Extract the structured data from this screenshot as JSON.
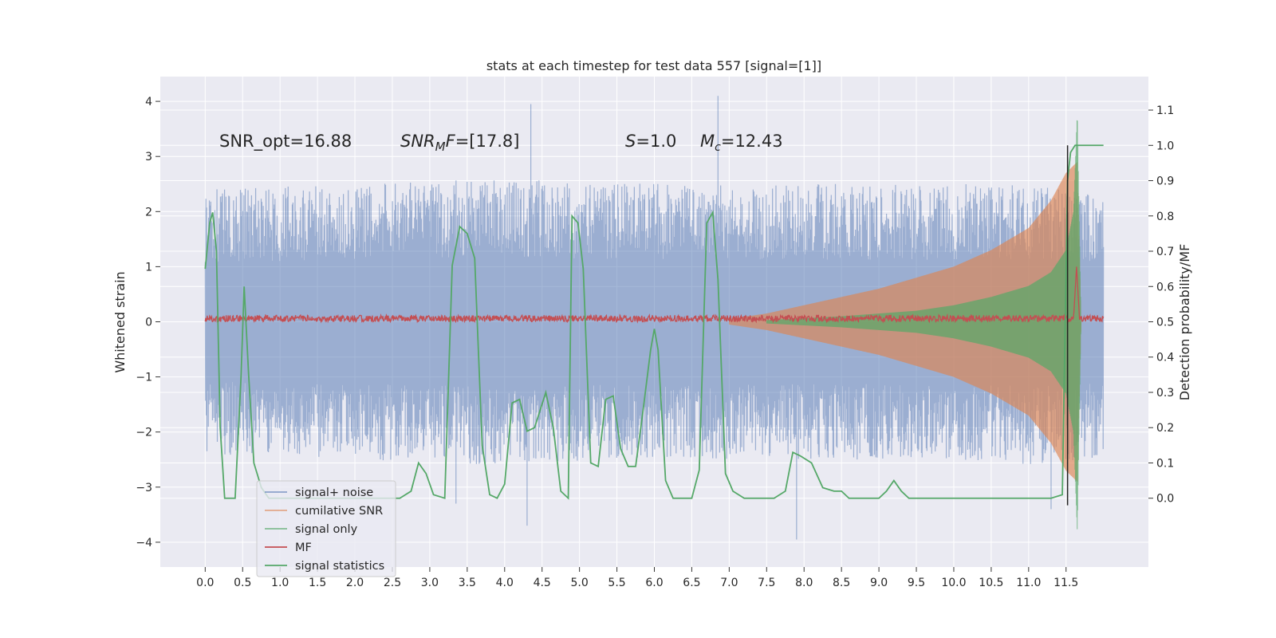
{
  "chart_data": {
    "type": "line",
    "title": "stats at each timestep for test data 557 [signal=[1]]",
    "xlabel": "",
    "ylabel": "Whitened strain",
    "y2label": "Detection probability/MF",
    "xlim": [
      -0.6,
      12.6
    ],
    "ylim": [
      -4.45,
      4.45
    ],
    "y2lim": [
      -0.195,
      1.195
    ],
    "x_ticks": [
      "0.0",
      "0.5",
      "1.0",
      "1.5",
      "2.0",
      "2.5",
      "3.0",
      "3.5",
      "4.0",
      "4.5",
      "5.0",
      "5.5",
      "6.0",
      "6.5",
      "7.0",
      "7.5",
      "8.0",
      "8.5",
      "9.0",
      "9.5",
      "10.0",
      "10.5",
      "11.0",
      "11.5"
    ],
    "y_ticks": [
      "4",
      "3",
      "2",
      "1",
      "0",
      "−1",
      "−2",
      "−3",
      "−4"
    ],
    "y2_ticks": [
      "1.1",
      "1.0",
      "0.9",
      "0.8",
      "0.7",
      "0.6",
      "0.5",
      "0.4",
      "0.3",
      "0.2",
      "0.1",
      "0.0"
    ],
    "grid": true,
    "legend_position": "lower-left",
    "annotations": {
      "snr_opt": "SNR_opt=16.88",
      "snr_mf": "[17.8]",
      "s_value": "1.0",
      "mc_value": "12.43"
    },
    "colors": {
      "signal_noise": "#4c72b0",
      "cumulative_snr": "#dd8452",
      "signal_only": "#55a868",
      "mf": "#c44e52",
      "signal_statistics": "#55a868",
      "background": "#eaeaf2",
      "grid": "#ffffff"
    },
    "series": [
      {
        "name": "signal+ noise",
        "axis": "left",
        "x_range": [
          0.0,
          12.0
        ],
        "envelope_upper": [
          [
            0.0,
            2.4
          ],
          [
            2.0,
            2.5
          ],
          [
            4.0,
            2.6
          ],
          [
            6.0,
            2.5
          ],
          [
            8.0,
            2.5
          ],
          [
            10.0,
            2.5
          ],
          [
            11.0,
            2.5
          ],
          [
            11.8,
            2.4
          ]
        ],
        "envelope_lower": [
          [
            0.0,
            -2.4
          ],
          [
            2.0,
            -2.5
          ],
          [
            4.0,
            -2.6
          ],
          [
            6.0,
            -2.5
          ],
          [
            8.0,
            -2.5
          ],
          [
            10.0,
            -2.5
          ],
          [
            11.0,
            -2.6
          ],
          [
            11.8,
            -2.5
          ]
        ],
        "peaks": [
          [
            4.35,
            3.95
          ],
          [
            6.85,
            4.1
          ],
          [
            4.3,
            -3.7
          ],
          [
            7.9,
            -3.95
          ],
          [
            3.35,
            -3.3
          ],
          [
            11.3,
            -3.4
          ]
        ]
      },
      {
        "name": "cumilative SNR",
        "axis": "left",
        "envelope": [
          [
            7.0,
            0.05
          ],
          [
            7.5,
            0.15
          ],
          [
            8.0,
            0.3
          ],
          [
            8.5,
            0.45
          ],
          [
            9.0,
            0.6
          ],
          [
            9.5,
            0.8
          ],
          [
            10.0,
            1.0
          ],
          [
            10.5,
            1.3
          ],
          [
            11.0,
            1.7
          ],
          [
            11.3,
            2.2
          ],
          [
            11.5,
            2.7
          ],
          [
            11.65,
            2.9
          ],
          [
            11.7,
            0.0
          ]
        ]
      },
      {
        "name": "signal only",
        "axis": "left",
        "envelope": [
          [
            7.5,
            0.03
          ],
          [
            8.5,
            0.1
          ],
          [
            9.5,
            0.2
          ],
          [
            10.0,
            0.3
          ],
          [
            10.5,
            0.45
          ],
          [
            11.0,
            0.65
          ],
          [
            11.3,
            0.9
          ],
          [
            11.5,
            1.3
          ],
          [
            11.6,
            2.0
          ],
          [
            11.65,
            3.8
          ],
          [
            11.7,
            0.0
          ]
        ]
      },
      {
        "name": "MF",
        "axis": "left",
        "baseline": 0.05,
        "band": [
          0.0,
          0.12
        ],
        "spike": [
          [
            11.6,
            0.05
          ],
          [
            11.64,
            1.0
          ],
          [
            11.68,
            0.05
          ]
        ]
      },
      {
        "name": "signal statistics",
        "axis": "right",
        "points": [
          [
            0.0,
            0.65
          ],
          [
            0.06,
            0.78
          ],
          [
            0.1,
            0.81
          ],
          [
            0.15,
            0.7
          ],
          [
            0.2,
            0.2
          ],
          [
            0.26,
            0.0
          ],
          [
            0.4,
            0.0
          ],
          [
            0.48,
            0.35
          ],
          [
            0.52,
            0.6
          ],
          [
            0.58,
            0.35
          ],
          [
            0.65,
            0.1
          ],
          [
            0.75,
            0.03
          ],
          [
            0.85,
            0.0
          ],
          [
            2.4,
            0.0
          ],
          [
            2.6,
            0.0
          ],
          [
            2.75,
            0.02
          ],
          [
            2.85,
            0.1
          ],
          [
            2.95,
            0.07
          ],
          [
            3.05,
            0.01
          ],
          [
            3.2,
            0.0
          ],
          [
            3.3,
            0.66
          ],
          [
            3.4,
            0.77
          ],
          [
            3.5,
            0.75
          ],
          [
            3.6,
            0.68
          ],
          [
            3.7,
            0.15
          ],
          [
            3.8,
            0.01
          ],
          [
            3.9,
            0.0
          ],
          [
            4.0,
            0.04
          ],
          [
            4.1,
            0.27
          ],
          [
            4.2,
            0.28
          ],
          [
            4.3,
            0.19
          ],
          [
            4.4,
            0.2
          ],
          [
            4.55,
            0.3
          ],
          [
            4.65,
            0.2
          ],
          [
            4.75,
            0.02
          ],
          [
            4.85,
            0.0
          ],
          [
            4.9,
            0.8
          ],
          [
            4.98,
            0.78
          ],
          [
            5.05,
            0.65
          ],
          [
            5.15,
            0.1
          ],
          [
            5.25,
            0.09
          ],
          [
            5.35,
            0.28
          ],
          [
            5.45,
            0.29
          ],
          [
            5.55,
            0.14
          ],
          [
            5.65,
            0.09
          ],
          [
            5.75,
            0.09
          ],
          [
            5.85,
            0.25
          ],
          [
            5.95,
            0.42
          ],
          [
            6.0,
            0.48
          ],
          [
            6.05,
            0.42
          ],
          [
            6.15,
            0.05
          ],
          [
            6.25,
            0.0
          ],
          [
            6.5,
            0.0
          ],
          [
            6.6,
            0.08
          ],
          [
            6.7,
            0.78
          ],
          [
            6.78,
            0.81
          ],
          [
            6.85,
            0.62
          ],
          [
            6.95,
            0.07
          ],
          [
            7.05,
            0.02
          ],
          [
            7.2,
            0.0
          ],
          [
            7.6,
            0.0
          ],
          [
            7.75,
            0.02
          ],
          [
            7.85,
            0.13
          ],
          [
            7.95,
            0.12
          ],
          [
            8.1,
            0.1
          ],
          [
            8.25,
            0.03
          ],
          [
            8.4,
            0.02
          ],
          [
            8.5,
            0.02
          ],
          [
            8.6,
            0.0
          ],
          [
            9.0,
            0.0
          ],
          [
            9.1,
            0.02
          ],
          [
            9.2,
            0.05
          ],
          [
            9.3,
            0.02
          ],
          [
            9.4,
            0.0
          ],
          [
            10.0,
            0.0
          ],
          [
            10.5,
            0.0
          ],
          [
            11.0,
            0.0
          ],
          [
            11.3,
            0.0
          ],
          [
            11.45,
            0.01
          ],
          [
            11.52,
            0.9
          ],
          [
            11.56,
            0.98
          ],
          [
            11.62,
            1.0
          ],
          [
            11.8,
            1.0
          ],
          [
            12.0,
            1.0
          ]
        ]
      }
    ]
  }
}
